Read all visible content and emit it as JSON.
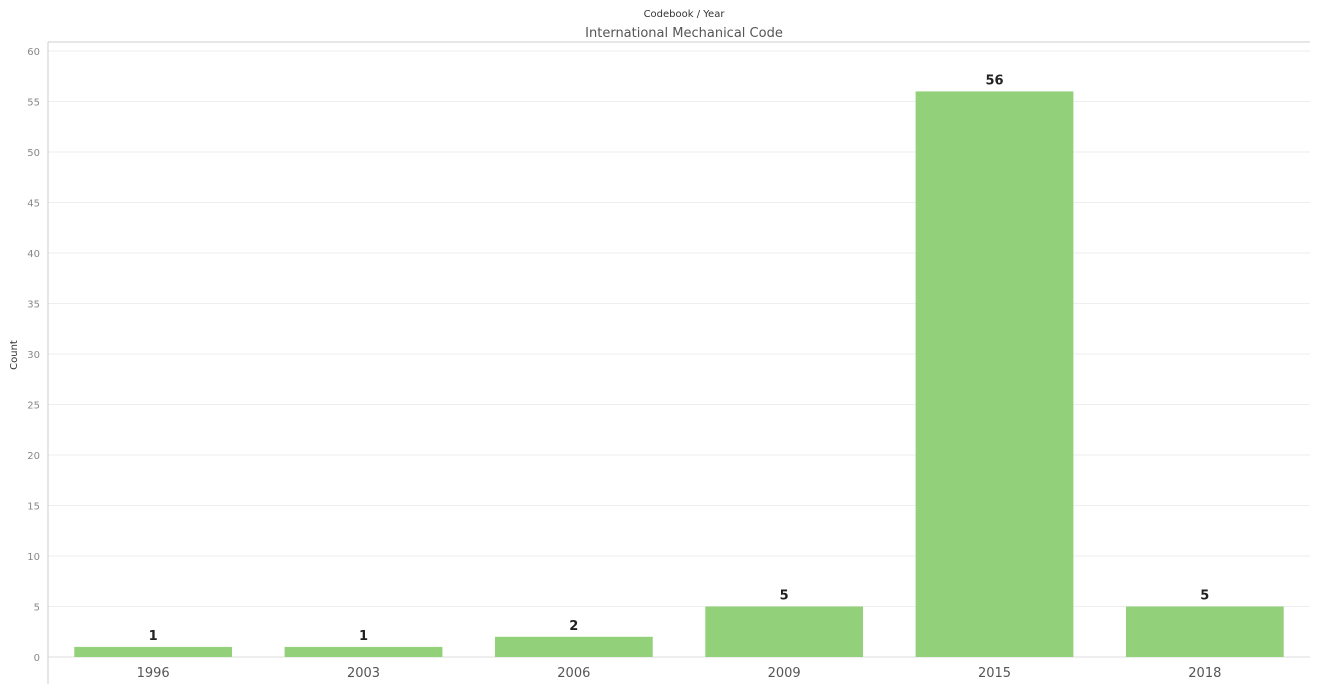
{
  "chart_data": {
    "type": "bar",
    "header": "Codebook / Year",
    "pane_title": "International Mechanical Code",
    "categories": [
      "1996",
      "2003",
      "2006",
      "2009",
      "2015",
      "2018"
    ],
    "values": [
      1,
      1,
      2,
      5,
      56,
      5
    ],
    "data_labels": [
      "1",
      "1",
      "2",
      "5",
      "56",
      "5"
    ],
    "xlabel": "",
    "ylabel": "Count",
    "ylim": [
      0,
      60
    ],
    "yticks": [
      0,
      5,
      10,
      15,
      20,
      25,
      30,
      35,
      40,
      45,
      50,
      55,
      60
    ],
    "grid": true,
    "bar_color": "#92d07a"
  }
}
